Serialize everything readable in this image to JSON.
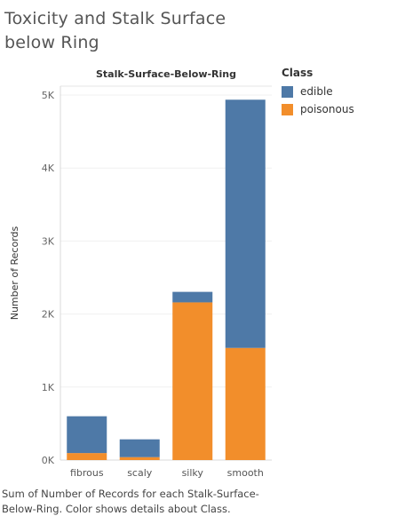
{
  "page": {
    "title": "Toxicity and Stalk Surface below Ring",
    "caption": "Sum of Number of Records for each Stalk-Surface-Below-Ring.  Color shows details about Class."
  },
  "legend": {
    "title": "Class",
    "items": [
      {
        "label": "edible",
        "color": "#4e79a7"
      },
      {
        "label": "poisonous",
        "color": "#f28e2b"
      }
    ]
  },
  "chart_data": {
    "type": "bar",
    "stacked": true,
    "title": "Stalk-Surface-Below-Ring",
    "xlabel": "",
    "ylabel": "Number of Records",
    "categories": [
      "fibrous",
      "scaly",
      "silky",
      "smooth"
    ],
    "series": [
      {
        "name": "poisonous",
        "color": "#f28e2b",
        "values": [
          96,
          40,
          2160,
          1536
        ]
      },
      {
        "name": "edible",
        "color": "#4e79a7",
        "values": [
          504,
          244,
          144,
          3400
        ]
      }
    ],
    "ylim": [
      0,
      5000
    ],
    "yticks": [
      {
        "value": 0,
        "label": "0K"
      },
      {
        "value": 1000,
        "label": "1K"
      },
      {
        "value": 2000,
        "label": "2K"
      },
      {
        "value": 3000,
        "label": "3K"
      },
      {
        "value": 4000,
        "label": "4K"
      },
      {
        "value": 5000,
        "label": "5K"
      }
    ],
    "grid": true,
    "legend_position": "right"
  }
}
